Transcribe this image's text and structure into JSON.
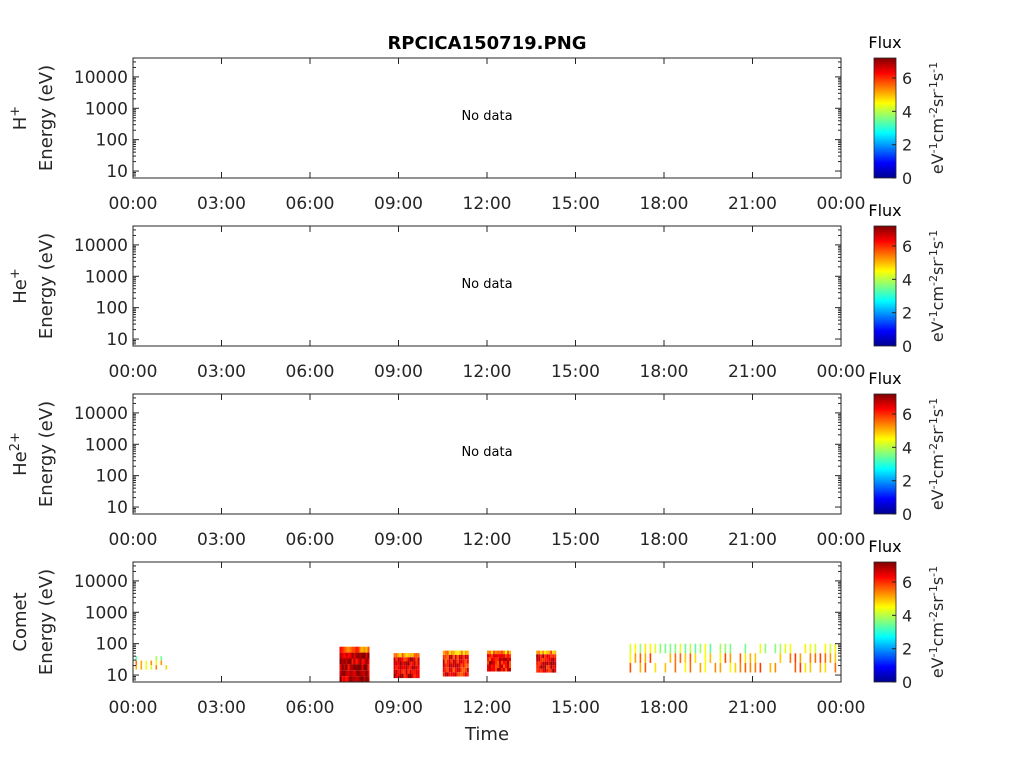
{
  "chart_data": {
    "type": "heatmap",
    "title": "RPCICA150719.PNG",
    "xlabel": "Time",
    "x_ticks": [
      "00:00",
      "03:00",
      "06:00",
      "09:00",
      "12:00",
      "15:00",
      "18:00",
      "21:00",
      "00:00"
    ],
    "x_range_hours": [
      0,
      24
    ],
    "y_scale": "log",
    "y_ticks": [
      "10",
      "100",
      "1000",
      "10000"
    ],
    "y_range_eV": [
      6,
      40000
    ],
    "colorbar": {
      "title": "Flux",
      "label": "eV-1cm-2sr-1s-1",
      "ticks": [
        "0",
        "2",
        "4",
        "6"
      ],
      "range": [
        0,
        7.2
      ],
      "colormap": "jet"
    },
    "panels": [
      {
        "species": "H+",
        "ylabel": "Energy (eV)",
        "status": "No data"
      },
      {
        "species": "He+",
        "ylabel": "Energy (eV)",
        "status": "No data"
      },
      {
        "species": "He2+",
        "ylabel": "Energy (eV)",
        "status": "No data"
      },
      {
        "species": "Comet",
        "ylabel": "Energy (eV)",
        "status": "",
        "data_intervals": [
          {
            "start": "00:05",
            "end": "01:15",
            "emin": 15,
            "emax": 40,
            "flux": 4.8,
            "style": "sparse"
          },
          {
            "start": "07:00",
            "end": "08:00",
            "emin": 6,
            "emax": 80,
            "flux": 6.8,
            "style": "dense"
          },
          {
            "start": "08:50",
            "end": "09:40",
            "emin": 8,
            "emax": 50,
            "flux": 6.5,
            "style": "dense"
          },
          {
            "start": "10:30",
            "end": "11:20",
            "emin": 9,
            "emax": 60,
            "flux": 6.2,
            "style": "dense"
          },
          {
            "start": "12:00",
            "end": "12:45",
            "emin": 13,
            "emax": 60,
            "flux": 6.3,
            "style": "dense"
          },
          {
            "start": "13:40",
            "end": "14:20",
            "emin": 12,
            "emax": 60,
            "flux": 6.5,
            "style": "dense"
          },
          {
            "start": "16:50",
            "end": "23:55",
            "emin": 12,
            "emax": 100,
            "flux": 5.2,
            "style": "sparse"
          }
        ]
      }
    ]
  }
}
